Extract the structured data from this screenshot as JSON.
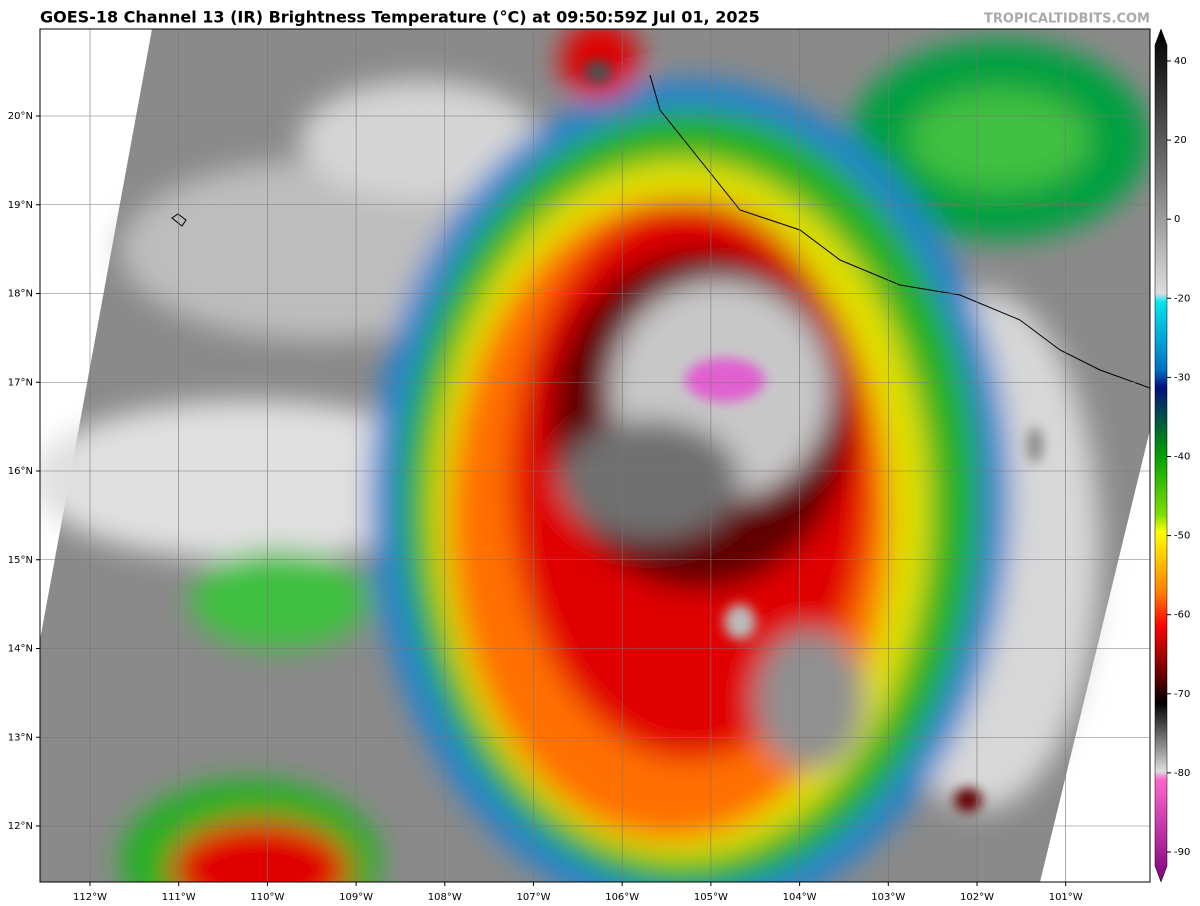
{
  "header": {
    "title": "GOES-18 Channel 13 (IR) Brightness Temperature (°C) at 09:50:59Z Jul 01, 2025",
    "watermark": "TROPICALTIDBITS.COM"
  },
  "map": {
    "lat_labels": [
      "20°N",
      "19°N",
      "18°N",
      "17°N",
      "16°N",
      "15°N",
      "14°N",
      "13°N",
      "12°N"
    ],
    "lon_labels": [
      "112°W",
      "111°W",
      "110°W",
      "109°W",
      "108°W",
      "107°W",
      "106°W",
      "105°W",
      "104°W",
      "103°W",
      "102°W",
      "101°W"
    ]
  },
  "colorbar": {
    "ticks": [
      40,
      20,
      0,
      -20,
      -30,
      -40,
      -50,
      -60,
      -70,
      -80,
      -90
    ]
  }
}
